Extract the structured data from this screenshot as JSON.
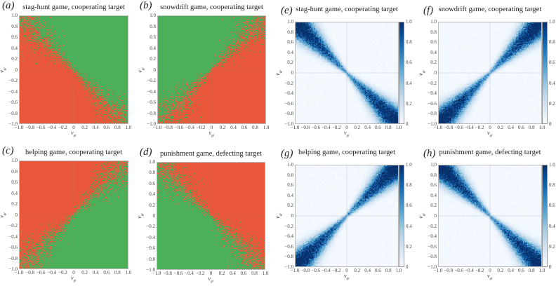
{
  "chart_data": [
    {
      "letter": "(a)",
      "title": "stag-hunt game, cooperating target",
      "type": "heatmap",
      "kind": "categorical",
      "diagonal": "anti",
      "upper_color": "#4caf5a",
      "lower_color": "#e8573a",
      "xlabel": "v_gi",
      "ylabel": "v_gr",
      "xlim": [
        -1,
        1
      ],
      "ylim": [
        -1,
        1
      ]
    },
    {
      "letter": "(b)",
      "title": "snowdrift game, cooperating target",
      "type": "heatmap",
      "kind": "categorical",
      "diagonal": "main",
      "upper_color": "#4caf5a",
      "lower_color": "#e8573a",
      "xlabel": "v_gi",
      "ylabel": "v_gr",
      "xlim": [
        -1,
        1
      ],
      "ylim": [
        -1,
        1
      ]
    },
    {
      "letter": "(c)",
      "title": "helping game, cooperating target",
      "type": "heatmap",
      "kind": "categorical",
      "diagonal": "main",
      "upper_color": "#e8573a",
      "lower_color": "#4caf5a",
      "xlabel": "v_gi",
      "ylabel": "v_gr",
      "xlim": [
        -1,
        1
      ],
      "ylim": [
        -1,
        1
      ]
    },
    {
      "letter": "(d)",
      "title": "punishment game, defecting target",
      "type": "heatmap",
      "kind": "categorical",
      "diagonal": "anti",
      "upper_color": "#e8573a",
      "lower_color": "#4caf5a",
      "xlabel": "v_gi",
      "ylabel": "v_gr",
      "xlim": [
        -1,
        1
      ],
      "ylim": [
        -1,
        1
      ]
    },
    {
      "letter": "(e)",
      "title": "stag-hunt game, cooperating target",
      "type": "heatmap",
      "kind": "density",
      "diagonal": "anti",
      "colormap": "Blues",
      "colorbar_range": [
        0,
        1
      ],
      "xlabel": "v_gi",
      "ylabel": "v_gr",
      "xlim": [
        -1,
        1
      ],
      "ylim": [
        -1,
        1
      ]
    },
    {
      "letter": "(f)",
      "title": "snowdrift game, cooperating target",
      "type": "heatmap",
      "kind": "density",
      "diagonal": "main",
      "colormap": "Blues",
      "colorbar_range": [
        0,
        1
      ],
      "xlabel": "v_gi",
      "ylabel": "v_gr",
      "xlim": [
        -1,
        1
      ],
      "ylim": [
        -1,
        1
      ]
    },
    {
      "letter": "(g)",
      "title": "helping game, cooperating target",
      "type": "heatmap",
      "kind": "density",
      "diagonal": "main",
      "colormap": "Blues",
      "colorbar_range": [
        0,
        1
      ],
      "xlabel": "v_gi",
      "ylabel": "v_gr",
      "xlim": [
        -1,
        1
      ],
      "ylim": [
        -1,
        1
      ]
    },
    {
      "letter": "(h)",
      "title": "punishment game, defecting target",
      "type": "heatmap",
      "kind": "density",
      "diagonal": "anti",
      "colormap": "Blues",
      "colorbar_range": [
        0,
        1
      ],
      "xlabel": "v_gi",
      "ylabel": "v_gr",
      "xlim": [
        -1,
        1
      ],
      "ylim": [
        -1,
        1
      ]
    }
  ],
  "axis_ticks": [
    "−1.0",
    "−0.8",
    "−0.6",
    "−0.4",
    "−0.2",
    "0",
    "0.2",
    "0.4",
    "0.6",
    "0.8",
    "1.0"
  ],
  "colorbar_ticks": [
    "0",
    "0.2",
    "0.4",
    "0.6",
    "0.8",
    "1.0"
  ]
}
